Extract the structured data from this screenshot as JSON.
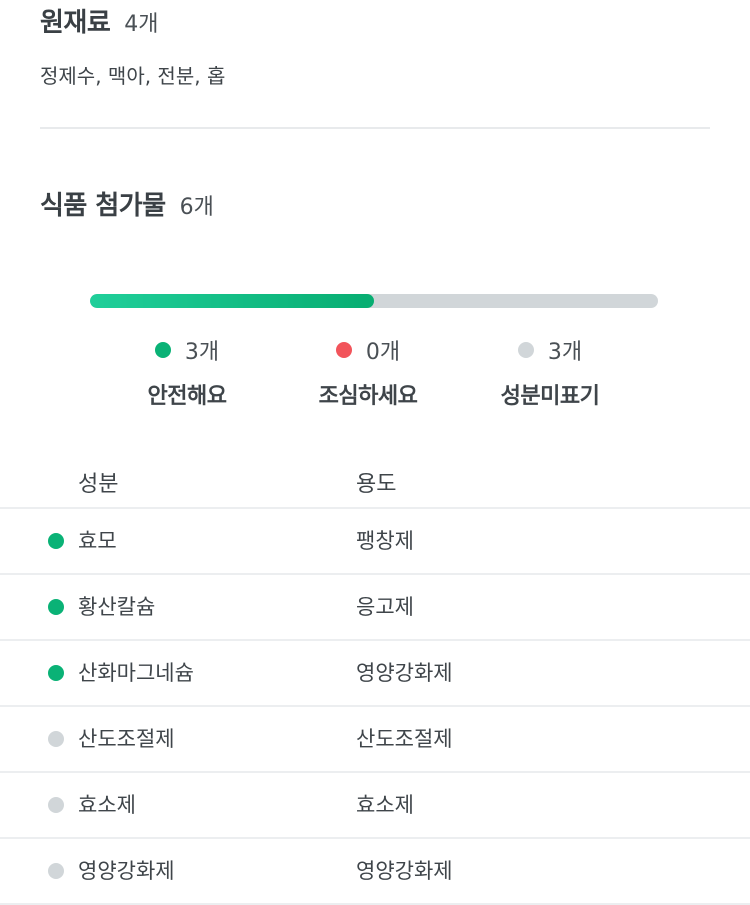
{
  "raw_materials": {
    "title": "원재료",
    "count": "4개",
    "list": "정제수, 맥아, 전분, 홉"
  },
  "additives": {
    "title": "식품 첨가물",
    "count": "6개",
    "safe_fraction": 0.5,
    "colors": {
      "safe": "#0ab276",
      "caution": "#f2545b",
      "unknown": "#d1d6d9"
    },
    "legend": [
      {
        "count": "3개",
        "label": "안전해요",
        "status": "safe"
      },
      {
        "count": "0개",
        "label": "조심하세요",
        "status": "caution"
      },
      {
        "count": "3개",
        "label": "성분미표기",
        "status": "unknown"
      }
    ]
  },
  "table": {
    "header": {
      "name": "성분",
      "use": "용도"
    },
    "rows": [
      {
        "name": "효모",
        "use": "팽창제",
        "status": "safe"
      },
      {
        "name": "황산칼슘",
        "use": "응고제",
        "status": "safe"
      },
      {
        "name": "산화마그네슘",
        "use": "영양강화제",
        "status": "safe"
      },
      {
        "name": "산도조절제",
        "use": "산도조절제",
        "status": "unknown"
      },
      {
        "name": "효소제",
        "use": "효소제",
        "status": "unknown"
      },
      {
        "name": "영양강화제",
        "use": "영양강화제",
        "status": "unknown"
      }
    ]
  }
}
